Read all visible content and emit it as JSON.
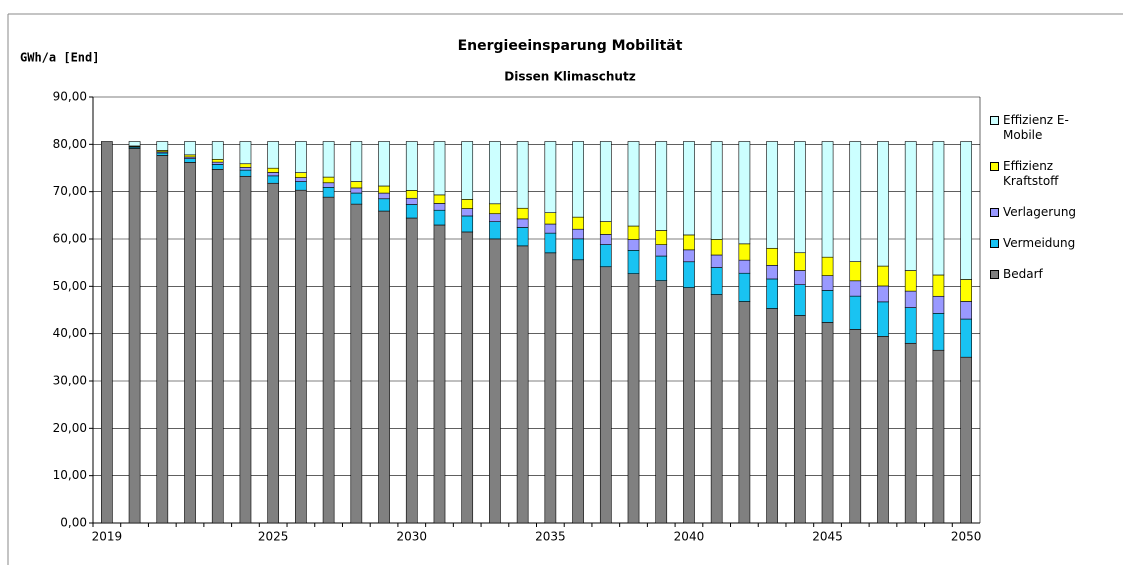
{
  "chart_data": {
    "type": "stacked_bar",
    "title": "Energieeinsparung Mobilität",
    "subtitle": "Dissen Klimaschutz",
    "y_label": "GWh/a [End]",
    "categories": [
      "2019",
      null,
      null,
      null,
      null,
      null,
      "2025",
      null,
      null,
      null,
      null,
      "2030",
      null,
      null,
      null,
      null,
      "2035",
      null,
      null,
      null,
      null,
      "2040",
      null,
      null,
      null,
      null,
      "2045",
      null,
      null,
      null,
      null,
      "2050"
    ],
    "series": [
      {
        "name": "Bedarf",
        "color": "#808080",
        "values": [
          80.6,
          79.13,
          77.66,
          76.19,
          74.72,
          73.25,
          71.78,
          70.31,
          68.84,
          67.37,
          65.9,
          64.43,
          62.96,
          61.49,
          60.02,
          58.55,
          57.08,
          55.61,
          54.14,
          52.67,
          51.2,
          49.73,
          48.26,
          46.79,
          45.32,
          43.85,
          42.38,
          40.91,
          39.44,
          37.97,
          36.5,
          35.03
        ]
      },
      {
        "name": "Vermeidung",
        "color": "#19c3f2",
        "values": [
          0,
          0.26,
          0.52,
          0.78,
          1.04,
          1.3,
          1.56,
          1.82,
          2.08,
          2.34,
          2.6,
          2.86,
          3.12,
          3.38,
          3.64,
          3.9,
          4.16,
          4.42,
          4.68,
          4.94,
          5.2,
          5.46,
          5.72,
          5.98,
          6.24,
          6.5,
          6.76,
          7.02,
          7.28,
          7.54,
          7.8,
          8.06
        ]
      },
      {
        "name": "Verlagerung",
        "color": "#9999ff",
        "values": [
          0,
          0.12,
          0.24,
          0.36,
          0.48,
          0.6,
          0.72,
          0.84,
          0.96,
          1.08,
          1.2,
          1.32,
          1.44,
          1.56,
          1.68,
          1.8,
          1.92,
          2.04,
          2.16,
          2.28,
          2.4,
          2.52,
          2.64,
          2.76,
          2.88,
          3,
          3.12,
          3.24,
          3.36,
          3.48,
          3.6,
          3.72
        ]
      },
      {
        "name": "Effizienz Kraftstoff",
        "color": "#ffff00",
        "values": [
          0,
          0.15,
          0.3,
          0.45,
          0.6,
          0.75,
          0.9,
          1.05,
          1.2,
          1.35,
          1.5,
          1.65,
          1.8,
          1.95,
          2.1,
          2.25,
          2.4,
          2.55,
          2.7,
          2.85,
          3,
          3.15,
          3.3,
          3.45,
          3.6,
          3.75,
          3.9,
          4.05,
          4.2,
          4.35,
          4.5,
          4.65
        ]
      },
      {
        "name": "Effizienz E-Mobile",
        "color": "#ccffff",
        "values": [
          0,
          0.94,
          1.88,
          2.82,
          3.76,
          4.7,
          5.64,
          6.58,
          7.52,
          8.46,
          9.4,
          10.34,
          11.28,
          12.22,
          13.16,
          14.1,
          15.04,
          15.98,
          16.92,
          17.86,
          18.8,
          19.74,
          20.68,
          21.62,
          22.56,
          23.5,
          24.44,
          25.38,
          26.32,
          27.26,
          28.2,
          29.14
        ]
      }
    ],
    "ylim": [
      0,
      90
    ],
    "yticks": [
      {
        "value": 0,
        "label": "0,00"
      },
      {
        "value": 10,
        "label": "10,00"
      },
      {
        "value": 20,
        "label": "20,00"
      },
      {
        "value": 30,
        "label": "30,00"
      },
      {
        "value": 40,
        "label": "40,00"
      },
      {
        "value": 50,
        "label": "50,00"
      },
      {
        "value": 60,
        "label": "60,00"
      },
      {
        "value": 70,
        "label": "70,00"
      },
      {
        "value": 80,
        "label": "80,00"
      },
      {
        "value": 90,
        "label": "90,00"
      }
    ],
    "grid": true,
    "legend": "right"
  }
}
